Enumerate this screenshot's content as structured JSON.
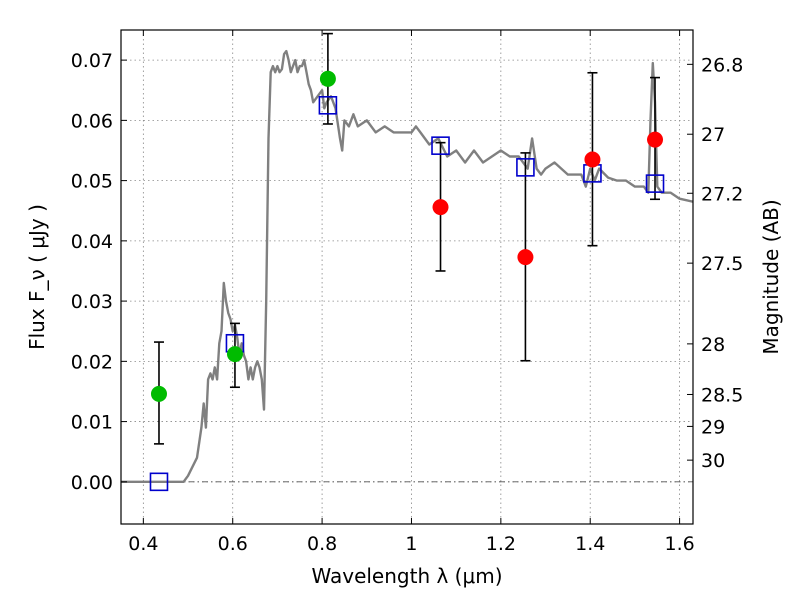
{
  "chart_data": {
    "type": "scatter",
    "xlabel": "Wavelength  λ (μm)",
    "ylabel": "Flux  F_ν  ( μJy )",
    "ylabel_right": "Magnitude (AB)",
    "xlim": [
      0.35,
      1.63
    ],
    "ylim": [
      -0.007,
      0.075
    ],
    "grid": true,
    "x_ticks": [
      {
        "value": 0.4,
        "label": "0.4"
      },
      {
        "value": 0.6,
        "label": "0.6"
      },
      {
        "value": 0.8,
        "label": "0.8"
      },
      {
        "value": 1.0,
        "label": "1"
      },
      {
        "value": 1.2,
        "label": "1.2"
      },
      {
        "value": 1.4,
        "label": "1.4"
      },
      {
        "value": 1.6,
        "label": "1.6"
      }
    ],
    "y_ticks": [
      {
        "value": 0.0,
        "label": "0.00"
      },
      {
        "value": 0.01,
        "label": "0.01"
      },
      {
        "value": 0.02,
        "label": "0.02"
      },
      {
        "value": 0.03,
        "label": "0.03"
      },
      {
        "value": 0.04,
        "label": "0.04"
      },
      {
        "value": 0.05,
        "label": "0.05"
      },
      {
        "value": 0.06,
        "label": "0.06"
      },
      {
        "value": 0.07,
        "label": "0.07"
      }
    ],
    "right_ticks": [
      {
        "flux": 0.0693,
        "label": "26.8"
      },
      {
        "flux": 0.0577,
        "label": "27"
      },
      {
        "flux": 0.0479,
        "label": "27.2"
      },
      {
        "flux": 0.0363,
        "label": "27.5"
      },
      {
        "flux": 0.0229,
        "label": "28"
      },
      {
        "flux": 0.0145,
        "label": "28.5"
      },
      {
        "flux": 0.0092,
        "label": "29"
      },
      {
        "flux": 0.0036,
        "label": "30"
      }
    ],
    "colors": {
      "model": "#808080",
      "green": "#00bb00",
      "red": "#ff0000",
      "square": "#0000cc",
      "errorbar": "#000000"
    },
    "model_spectrum": {
      "x": [
        0.35,
        0.49,
        0.5,
        0.52,
        0.53,
        0.535,
        0.54,
        0.545,
        0.55,
        0.555,
        0.56,
        0.565,
        0.57,
        0.575,
        0.58,
        0.585,
        0.59,
        0.595,
        0.6,
        0.605,
        0.61,
        0.615,
        0.62,
        0.625,
        0.63,
        0.635,
        0.64,
        0.645,
        0.65,
        0.655,
        0.66,
        0.665,
        0.67,
        0.675,
        0.68,
        0.685,
        0.69,
        0.695,
        0.7,
        0.705,
        0.71,
        0.715,
        0.72,
        0.725,
        0.73,
        0.735,
        0.74,
        0.745,
        0.75,
        0.755,
        0.76,
        0.765,
        0.77,
        0.775,
        0.78,
        0.79,
        0.8,
        0.805,
        0.81,
        0.82,
        0.83,
        0.84,
        0.845,
        0.85,
        0.86,
        0.87,
        0.88,
        0.9,
        0.92,
        0.94,
        0.96,
        0.98,
        1.0,
        1.01,
        1.02,
        1.04,
        1.06,
        1.08,
        1.1,
        1.12,
        1.14,
        1.16,
        1.18,
        1.2,
        1.22,
        1.24,
        1.26,
        1.27,
        1.28,
        1.29,
        1.3,
        1.32,
        1.35,
        1.38,
        1.39,
        1.4,
        1.41,
        1.42,
        1.44,
        1.46,
        1.48,
        1.5,
        1.52,
        1.53,
        1.535,
        1.54,
        1.545,
        1.55,
        1.56,
        1.58,
        1.6,
        1.63
      ],
      "y": [
        0.0,
        0.0,
        0.001,
        0.004,
        0.009,
        0.013,
        0.009,
        0.017,
        0.018,
        0.017,
        0.019,
        0.017,
        0.023,
        0.025,
        0.033,
        0.03,
        0.028,
        0.027,
        0.025,
        0.026,
        0.024,
        0.021,
        0.023,
        0.021,
        0.02,
        0.017,
        0.019,
        0.017,
        0.019,
        0.02,
        0.019,
        0.017,
        0.012,
        0.03,
        0.057,
        0.068,
        0.069,
        0.068,
        0.069,
        0.068,
        0.0685,
        0.071,
        0.0715,
        0.07,
        0.068,
        0.069,
        0.07,
        0.068,
        0.069,
        0.069,
        0.07,
        0.068,
        0.066,
        0.065,
        0.063,
        0.064,
        0.065,
        0.062,
        0.063,
        0.064,
        0.062,
        0.057,
        0.055,
        0.06,
        0.059,
        0.061,
        0.059,
        0.06,
        0.058,
        0.059,
        0.058,
        0.058,
        0.058,
        0.059,
        0.058,
        0.056,
        0.057,
        0.054,
        0.055,
        0.053,
        0.055,
        0.053,
        0.054,
        0.055,
        0.054,
        0.054,
        0.052,
        0.057,
        0.052,
        0.051,
        0.052,
        0.053,
        0.051,
        0.051,
        0.049,
        0.052,
        0.05,
        0.052,
        0.0505,
        0.05,
        0.05,
        0.049,
        0.049,
        0.048,
        0.06,
        0.0695,
        0.063,
        0.049,
        0.048,
        0.048,
        0.047,
        0.0465
      ]
    },
    "green_points": [
      {
        "x": 0.435,
        "y": 0.0146,
        "err_lo": 0.0063,
        "err_hi": 0.0232
      },
      {
        "x": 0.605,
        "y": 0.0212,
        "err_lo": 0.0157,
        "err_hi": 0.0263
      },
      {
        "x": 0.813,
        "y": 0.0669,
        "err_lo": 0.0594,
        "err_hi": 0.0744
      }
    ],
    "red_points": [
      {
        "x": 1.065,
        "y": 0.0456,
        "err_lo": 0.035,
        "err_hi": 0.0563
      },
      {
        "x": 1.255,
        "y": 0.0373,
        "err_lo": 0.0201,
        "err_hi": 0.0546
      },
      {
        "x": 1.405,
        "y": 0.0535,
        "err_lo": 0.0392,
        "err_hi": 0.0679
      },
      {
        "x": 1.545,
        "y": 0.0568,
        "err_lo": 0.0469,
        "err_hi": 0.0671
      }
    ],
    "model_squares": [
      {
        "x": 0.435,
        "y": 0.0
      },
      {
        "x": 0.605,
        "y": 0.023
      },
      {
        "x": 0.813,
        "y": 0.0625
      },
      {
        "x": 1.065,
        "y": 0.0558
      },
      {
        "x": 1.255,
        "y": 0.0522
      },
      {
        "x": 1.405,
        "y": 0.0512
      },
      {
        "x": 1.545,
        "y": 0.0495
      }
    ]
  }
}
